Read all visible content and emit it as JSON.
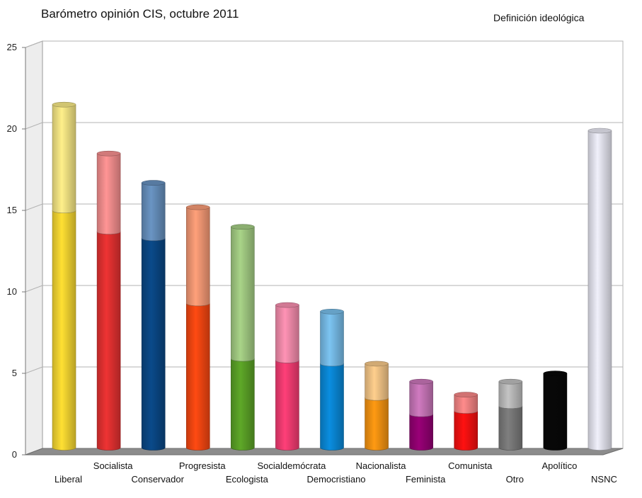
{
  "chart_data": {
    "type": "bar",
    "title": "Barómetro opinión CIS, octubre 2011",
    "subtitle": "Definición ideológica",
    "xlabel": "",
    "ylabel": "",
    "ylim": [
      0,
      25
    ],
    "yticks": [
      0,
      5,
      10,
      15,
      20,
      25
    ],
    "grid": true,
    "stacked": true,
    "categories": [
      "Liberal",
      "Socialista",
      "Conservador",
      "Progresista",
      "Ecologista",
      "Socialdemócrata",
      "Democristiano",
      "Nacionalista",
      "Feminista",
      "Comunista",
      "Otro",
      "Apolítico",
      "NSNC"
    ],
    "series": [
      {
        "values": [
          14.6,
          13.3,
          12.9,
          8.9,
          5.5,
          5.4,
          5.2,
          3.1,
          2.1,
          2.3,
          2.6,
          4.6,
          0
        ],
        "colors": [
          "#ffe033",
          "#ee3333",
          "#0a4a8a",
          "#ff4a12",
          "#5ea828",
          "#ff3f78",
          "#0a8ee0",
          "#ff9a12",
          "#990077",
          "#ff1111",
          "#7f7f7f",
          "#080808",
          "#f0f0fb"
        ]
      },
      {
        "values": [
          6.5,
          4.8,
          3.4,
          5.9,
          8.1,
          3.4,
          3.2,
          2.1,
          2.0,
          1.0,
          1.5,
          0,
          19.5
        ],
        "colors": [
          "#fff08a",
          "#ff9595",
          "#6a95c4",
          "#ffa07a",
          "#a9d488",
          "#ff93b5",
          "#7cc4f2",
          "#ffcf8d",
          "#d07ac0",
          "#ff8b8b",
          "#c4c4c4",
          "#a0a0a0",
          "#f0f0fb"
        ]
      }
    ]
  }
}
